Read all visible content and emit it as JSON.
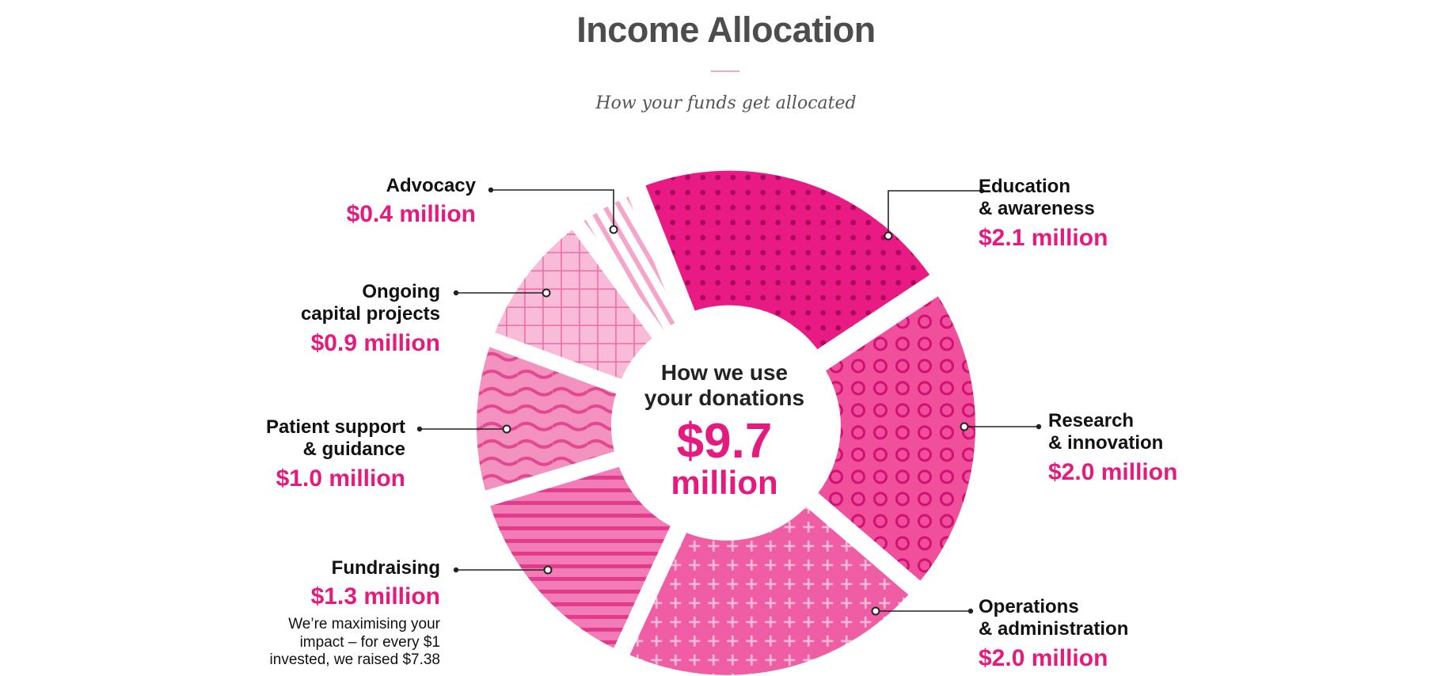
{
  "header": {
    "title": "Income Allocation",
    "subtitle": "How your funds get allocated"
  },
  "center": {
    "line1": "How we use",
    "line2": "your donations",
    "total": "$9.7",
    "unit": "million"
  },
  "chart_data": {
    "type": "pie",
    "total": 9.7,
    "units": "million",
    "slices": [
      {
        "name_line1": "Education",
        "name_line2": "& awareness",
        "value": 2.1,
        "value_label": "$2.1 million",
        "fill": "#ea1a84",
        "pattern": "dots"
      },
      {
        "name_line1": "Research",
        "name_line2": "& innovation",
        "value": 2.0,
        "value_label": "$2.0 million",
        "fill": "#ef4f9b",
        "pattern": "circles"
      },
      {
        "name_line1": "Operations",
        "name_line2": "& administration",
        "value": 2.0,
        "value_label": "$2.0 million",
        "fill": "#ef5ea4",
        "pattern": "plus"
      },
      {
        "name_line1": "Fundraising",
        "name_line2": "",
        "value": 1.3,
        "value_label": "$1.3 million",
        "fill": "#f27db6",
        "pattern": "stripes",
        "note": [
          "We’re maximising your",
          "impact – for every $1",
          "invested, we raised $7.38"
        ]
      },
      {
        "name_line1": "Patient support",
        "name_line2": "& guidance",
        "value": 1.0,
        "value_label": "$1.0 million",
        "fill": "#f391bf",
        "pattern": "waves"
      },
      {
        "name_line1": "Ongoing",
        "name_line2": "capital projects",
        "value": 0.9,
        "value_label": "$0.9 million",
        "fill": "#f9bcd8",
        "pattern": "grid"
      },
      {
        "name_line1": "Advocacy",
        "name_line2": "",
        "value": 0.4,
        "value_label": "$0.4 million",
        "fill": "#fbd0e3",
        "pattern": "diagonal"
      }
    ]
  },
  "colors": {
    "accent": "#e6197f",
    "title": "#4d4d4f",
    "pattern_line": "#d20f72"
  }
}
